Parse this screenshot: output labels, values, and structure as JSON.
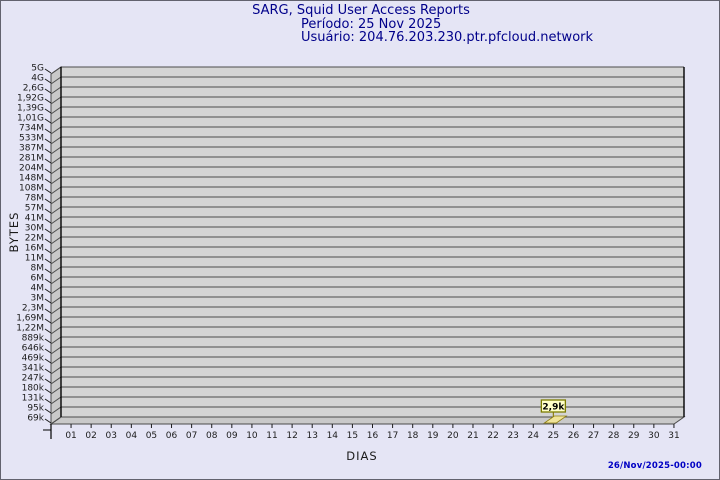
{
  "header": {
    "title": "SARG, Squid User Access Reports",
    "period": "Período: 25 Nov 2025",
    "user": "Usuário: 204.76.203.230.ptr.pfcloud.network"
  },
  "footer": {
    "timestamp": "26/Nov/2025-00:00"
  },
  "chart_data": {
    "type": "bar",
    "title": "SARG, Squid User Access Reports",
    "xlabel": "DIAS",
    "ylabel": "BYTES",
    "y_scale": "logarithmic",
    "ylim": [
      "69k",
      "5G"
    ],
    "grid": true,
    "legend": "none",
    "y_ticklabels": [
      "5G",
      "4G",
      "2,6G",
      "1,92G",
      "1,39G",
      "1,01G",
      "734M",
      "533M",
      "387M",
      "281M",
      "204M",
      "148M",
      "108M",
      "78M",
      "57M",
      "41M",
      "30M",
      "22M",
      "16M",
      "11M",
      "8M",
      "6M",
      "4M",
      "3M",
      "2,3M",
      "1,69M",
      "1,22M",
      "889k",
      "646k",
      "469k",
      "341k",
      "247k",
      "180k",
      "131k",
      "95k",
      "69k"
    ],
    "x_ticklabels": [
      "01",
      "02",
      "03",
      "04",
      "05",
      "06",
      "07",
      "08",
      "09",
      "10",
      "11",
      "12",
      "13",
      "14",
      "15",
      "16",
      "17",
      "18",
      "19",
      "20",
      "21",
      "22",
      "23",
      "24",
      "25",
      "26",
      "27",
      "28",
      "29",
      "30",
      "31"
    ],
    "points": [
      {
        "day": "25",
        "value_label": "2,9k",
        "value_bytes": 2900
      }
    ],
    "colors": {
      "page_bg": "#e5e5f5",
      "plot_bg": "#d4d4d4",
      "frame": "#c9c9c9",
      "grid": "#4b4b4b",
      "axis_edge": "#000000",
      "tick_text": "#1c1c1c",
      "title_text": "#00008a",
      "timestamp_text": "#0000c4",
      "bar_fill": "#f0e49a",
      "bar_edge": "#8f7f10",
      "label_bg": "#ffffc9",
      "label_border": "#7c7c00"
    }
  }
}
